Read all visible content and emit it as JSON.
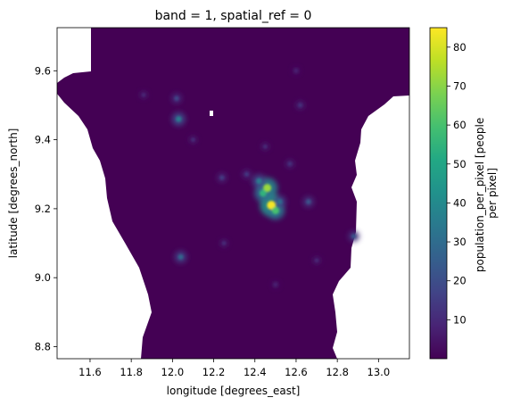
{
  "chart_data": {
    "type": "heatmap",
    "title": "band = 1, spatial_ref = 0",
    "xlabel": "longitude [degrees_east]",
    "ylabel": "latitude [degrees_north]",
    "xlim": [
      11.44,
      13.15
    ],
    "ylim": [
      8.765,
      9.725
    ],
    "x_ticks": [
      "11.6",
      "11.8",
      "12.0",
      "12.2",
      "12.4",
      "12.6",
      "12.8",
      "13.0"
    ],
    "x_tick_values": [
      11.6,
      11.8,
      12.0,
      12.2,
      12.4,
      12.6,
      12.8,
      13.0
    ],
    "y_ticks": [
      "8.8",
      "9.0",
      "9.2",
      "9.4",
      "9.6"
    ],
    "y_tick_values": [
      8.8,
      9.0,
      9.2,
      9.4,
      9.6
    ],
    "colorbar": {
      "label": "population_per_pixel [people\nper pixel]",
      "colormap": "viridis",
      "vmin": 0,
      "vmax": 85,
      "ticks": [
        "10",
        "20",
        "30",
        "40",
        "50",
        "60",
        "70",
        "80"
      ],
      "tick_values": [
        10,
        20,
        30,
        40,
        50,
        60,
        70,
        80
      ]
    },
    "grid": false,
    "hotspots": [
      {
        "lon": 12.48,
        "lat": 9.21,
        "value": 84
      },
      {
        "lon": 12.46,
        "lat": 9.26,
        "value": 72
      },
      {
        "lon": 12.44,
        "lat": 9.245,
        "value": 55
      },
      {
        "lon": 12.5,
        "lat": 9.195,
        "value": 60
      },
      {
        "lon": 12.42,
        "lat": 9.28,
        "value": 35
      },
      {
        "lon": 12.52,
        "lat": 9.22,
        "value": 30
      },
      {
        "lon": 12.03,
        "lat": 9.46,
        "value": 35
      },
      {
        "lon": 12.02,
        "lat": 9.52,
        "value": 18
      },
      {
        "lon": 12.04,
        "lat": 9.06,
        "value": 28
      },
      {
        "lon": 12.66,
        "lat": 9.22,
        "value": 22
      },
      {
        "lon": 12.88,
        "lat": 9.12,
        "value": 22
      },
      {
        "lon": 12.24,
        "lat": 9.29,
        "value": 15
      },
      {
        "lon": 12.36,
        "lat": 9.3,
        "value": 14
      },
      {
        "lon": 12.57,
        "lat": 9.33,
        "value": 12
      },
      {
        "lon": 12.62,
        "lat": 9.5,
        "value": 12
      },
      {
        "lon": 12.45,
        "lat": 9.38,
        "value": 10
      },
      {
        "lon": 12.1,
        "lat": 9.4,
        "value": 10
      },
      {
        "lon": 11.86,
        "lat": 9.53,
        "value": 9
      },
      {
        "lon": 12.25,
        "lat": 9.1,
        "value": 10
      },
      {
        "lon": 12.5,
        "lat": 8.98,
        "value": 8
      },
      {
        "lon": 12.7,
        "lat": 9.05,
        "value": 9
      },
      {
        "lon": 12.6,
        "lat": 9.6,
        "value": 8
      }
    ]
  }
}
